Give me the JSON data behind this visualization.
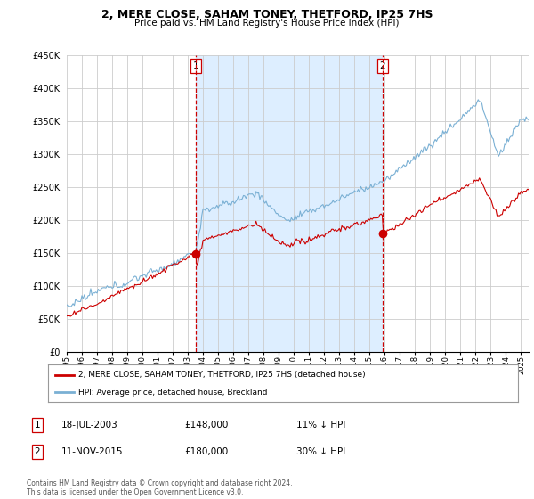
{
  "title": "2, MERE CLOSE, SAHAM TONEY, THETFORD, IP25 7HS",
  "subtitle": "Price paid vs. HM Land Registry's House Price Index (HPI)",
  "ylim": [
    0,
    450000
  ],
  "xlim_start": 1995.0,
  "xlim_end": 2025.5,
  "sale1_date": 2003.54,
  "sale1_price": 148000,
  "sale2_date": 2015.86,
  "sale2_price": 180000,
  "legend_house": "2, MERE CLOSE, SAHAM TONEY, THETFORD, IP25 7HS (detached house)",
  "legend_hpi": "HPI: Average price, detached house, Breckland",
  "table_row1": [
    "1",
    "18-JUL-2003",
    "£148,000",
    "11% ↓ HPI"
  ],
  "table_row2": [
    "2",
    "11-NOV-2015",
    "£180,000",
    "30% ↓ HPI"
  ],
  "footnote": "Contains HM Land Registry data © Crown copyright and database right 2024.\nThis data is licensed under the Open Government Licence v3.0.",
  "house_color": "#cc0000",
  "hpi_color": "#7ab0d4",
  "shade_color": "#ddeeff",
  "grid_color": "#cccccc",
  "bg_color": "#ffffff",
  "ytick_vals": [
    0,
    50000,
    100000,
    150000,
    200000,
    250000,
    300000,
    350000,
    400000,
    450000
  ],
  "ytick_labels": [
    "£0",
    "£50K",
    "£100K",
    "£150K",
    "£200K",
    "£250K",
    "£300K",
    "£350K",
    "£400K",
    "£450K"
  ]
}
